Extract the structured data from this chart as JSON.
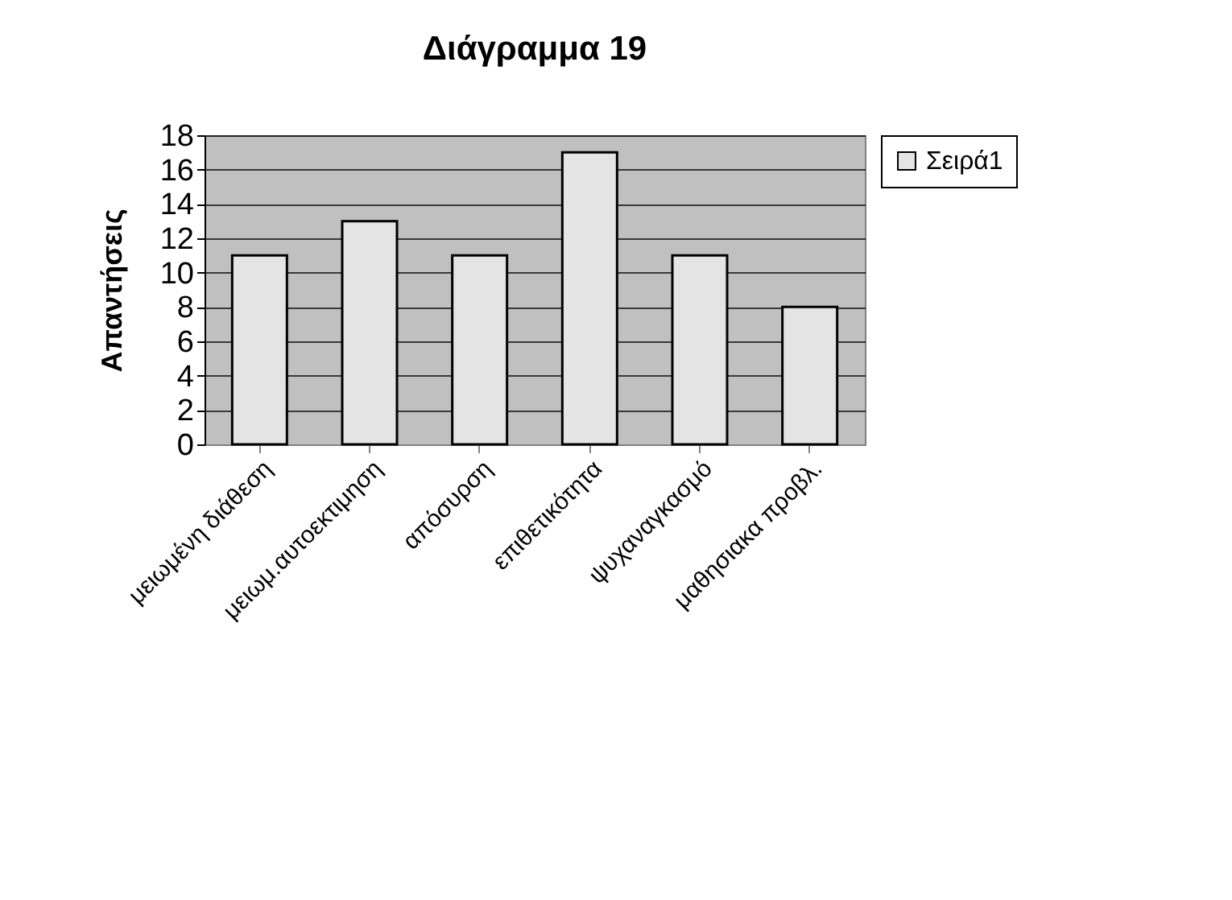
{
  "chart_data": {
    "type": "bar",
    "title": "Διάγραμμα 19",
    "ylabel": "Απαντήσεις",
    "categories": [
      "μειωμένη διάθεση",
      "μειωμ.αυτοεκτιμηση",
      "απόσυρση",
      "επιθετικότητα",
      "ψυχαναγκασμό",
      "μαθησιακα προβλ."
    ],
    "series": [
      {
        "name": "Σειρά1",
        "color": "#e4e4e4",
        "values": [
          11,
          13,
          11,
          17,
          11,
          8
        ]
      }
    ],
    "ylim": [
      0,
      18
    ],
    "yticks": [
      0,
      2,
      4,
      6,
      8,
      10,
      12,
      14,
      16,
      18
    ],
    "grid": "y",
    "legend": "right"
  }
}
